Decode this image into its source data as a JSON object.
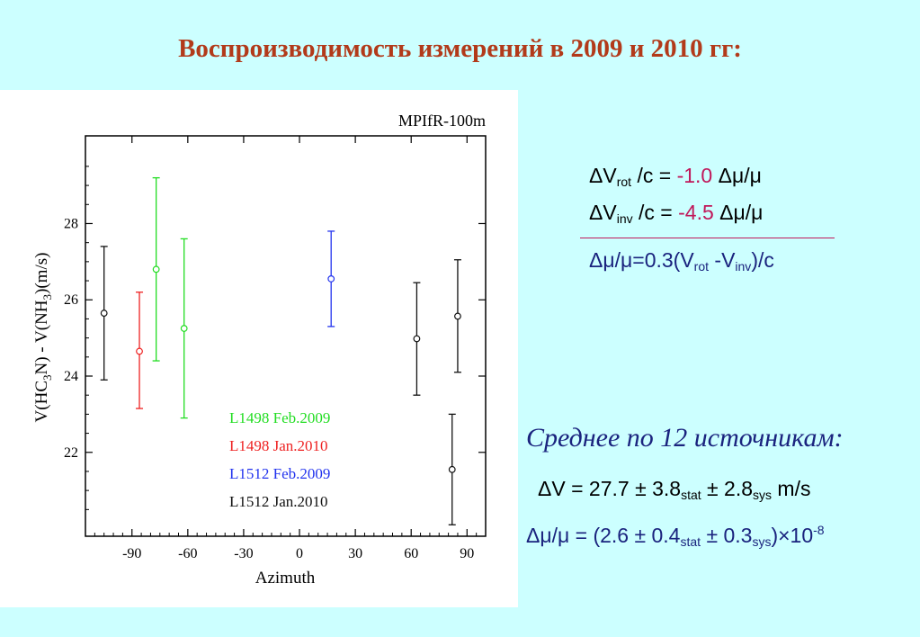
{
  "title": "Воспроизводимость измерений в 2009 и 2010 гг:",
  "chart_data": {
    "type": "scatter",
    "annotation": "MPIfR-100m",
    "xlabel": "Azimuth",
    "ylabel": "V(HC3N) - V(NH3)(m/s)",
    "xlim": [
      -115,
      100
    ],
    "ylim": [
      19.8,
      30.3
    ],
    "x_ticks": [
      -90,
      -60,
      -30,
      0,
      30,
      60,
      90
    ],
    "x_tick_labels": [
      "-90",
      "-60",
      "-30",
      "0",
      "30",
      "60",
      "90"
    ],
    "y_ticks": [
      22,
      24,
      26,
      28
    ],
    "y_tick_labels": [
      "22",
      "24",
      "26",
      "28"
    ],
    "legend_position": "bottom-left",
    "series": [
      {
        "name": "L1498 Feb.2009",
        "color": "#22dd22",
        "points": [
          {
            "x": -77,
            "y": 26.8,
            "lo": 24.4,
            "hi": 29.2
          },
          {
            "x": -62,
            "y": 25.25,
            "lo": 22.9,
            "hi": 27.6
          }
        ]
      },
      {
        "name": "L1498 Jan.2010",
        "color": "#ee2222",
        "points": [
          {
            "x": -86,
            "y": 24.65,
            "lo": 23.15,
            "hi": 26.2
          }
        ]
      },
      {
        "name": "L1512 Feb.2009",
        "color": "#2233ee",
        "points": [
          {
            "x": 17,
            "y": 26.55,
            "lo": 25.3,
            "hi": 27.8
          }
        ]
      },
      {
        "name": "L1512 Jan.2010",
        "color": "#111111",
        "points": [
          {
            "x": -105,
            "y": 25.65,
            "lo": 23.9,
            "hi": 27.4
          },
          {
            "x": 63,
            "y": 24.98,
            "lo": 23.5,
            "hi": 26.45
          },
          {
            "x": 85,
            "y": 25.57,
            "lo": 24.1,
            "hi": 27.05
          },
          {
            "x": 82,
            "y": 21.55,
            "lo": 20.1,
            "hi": 23.0
          }
        ]
      }
    ]
  },
  "equations": {
    "delta_v": "ΔV",
    "rot_sub": "rot",
    "inv_sub": "inv",
    "over_c_eq": " /c = ",
    "rot_value": "-1.0",
    "inv_value": "-4.5",
    "dmu_mu": " Δμ/μ",
    "relation_lhs": "Δμ/μ=0.3(V",
    "relation_mid": " -V",
    "relation_end": ")/c"
  },
  "summary": {
    "heading": "Среднее по 12 источникам:",
    "dv_main": "ΔV = 27.7 ± 3.8",
    "stat_sub": "stat",
    "dv_mid": " ± 2.8",
    "sys_sub": "sys",
    "dv_unit": "  m/s",
    "mu_main": "Δμ/μ = (2.6 ± 0.4",
    "mu_mid": " ± 0.3",
    "mu_end": ")×10",
    "mu_exp": "-8"
  }
}
